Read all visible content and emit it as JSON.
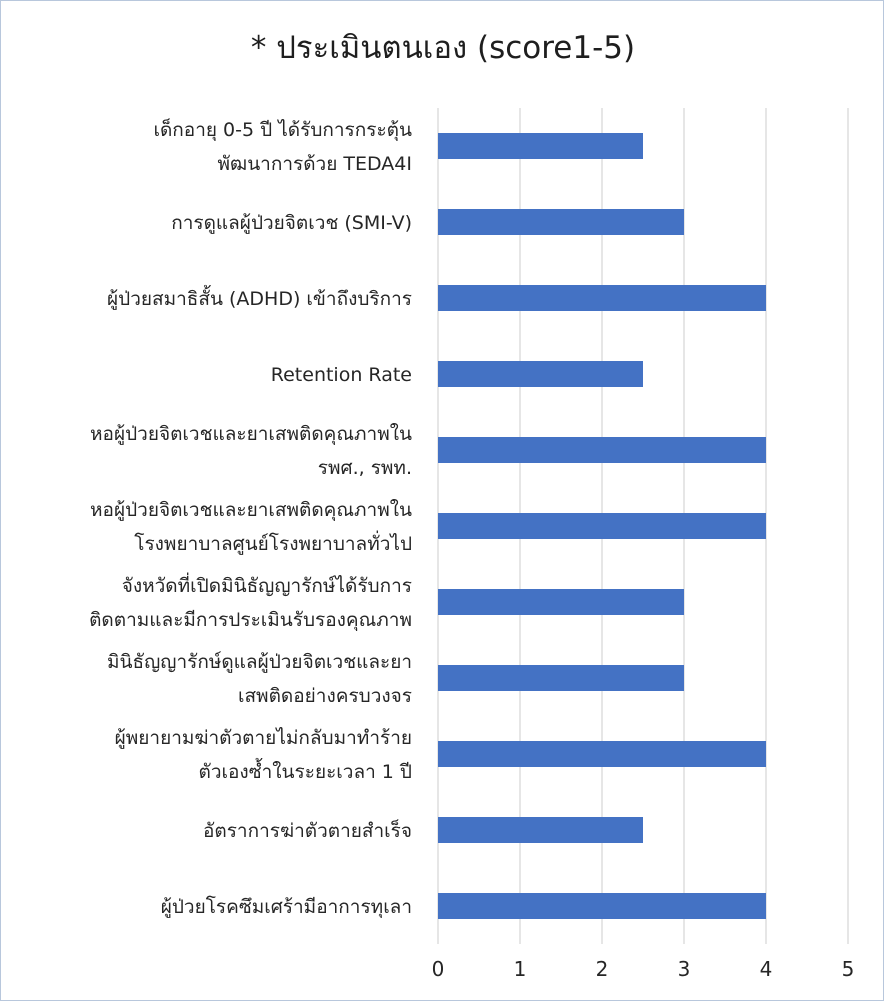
{
  "chart_data": {
    "type": "bar",
    "orientation": "horizontal",
    "title": "* ประเมินตนเอง (score1-5)",
    "xlabel": "",
    "ylabel": "",
    "xlim": [
      0,
      5
    ],
    "x_ticks": [
      "0",
      "1",
      "2",
      "3",
      "4",
      "5"
    ],
    "grid": true,
    "legend": "none",
    "bar_color": "#4472c4",
    "categories": [
      [
        "เด็กอายุ 0-5 ปี ได้รับการกระตุ้น",
        "พัฒนาการด้วย TEDA4I"
      ],
      [
        "การดูแลผู้ป่วยจิตเวช (SMI-V)"
      ],
      [
        "ผู้ป่วยสมาธิสั้น (ADHD) เข้าถึงบริการ"
      ],
      [
        "Retention Rate"
      ],
      [
        "หอผู้ป่วยจิตเวชและยาเสพติดคุณภาพใน",
        "รพศ., รพท."
      ],
      [
        "หอผู้ป่วยจิตเวชและยาเสพติดคุณภาพใน",
        "โรงพยาบาลศูนย์โรงพยาบาลทั่วไป"
      ],
      [
        "จังหวัดที่เปิดมินิธัญญารักษ์ได้รับการ",
        "ติดตามและมีการประเมินรับรองคุณภาพ"
      ],
      [
        "มินิธัญญารักษ์ดูแลผู้ป่วยจิตเวชและยา",
        "เสพติดอย่างครบวงจร"
      ],
      [
        "ผู้พยายามฆ่าตัวตายไม่กลับมาทำร้าย",
        "ตัวเองซ้ำในระยะเวลา 1 ปี"
      ],
      [
        "อัตราการฆ่าตัวตายสำเร็จ"
      ],
      [
        "ผู้ป่วยโรคซึมเศร้ามีอาการทุเลา"
      ]
    ],
    "values": [
      2.5,
      3,
      4,
      2.5,
      4,
      4,
      3,
      3,
      4,
      2.5,
      4
    ]
  }
}
